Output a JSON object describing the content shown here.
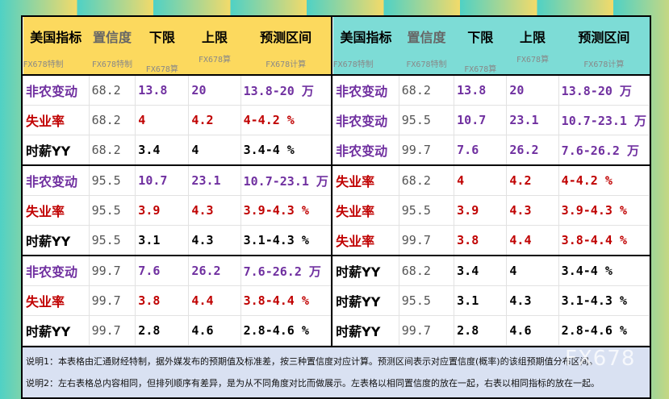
{
  "colors": {
    "nfp": "#7030a0",
    "unemp": "#c00000",
    "wage": "#000000",
    "left_header": "#fcd95e",
    "right_header": "#7ddcd6"
  },
  "headers": [
    {
      "title": "美国指标",
      "sub": "FX678特制"
    },
    {
      "title": "置信度",
      "sub": "FX678特制"
    },
    {
      "title": "下限",
      "sub": "FX678算"
    },
    {
      "title": "上限",
      "sub": "FX678算"
    },
    {
      "title": "预测区间",
      "sub": "FX678计算"
    }
  ],
  "left_rows": [
    {
      "indicator": "非农变动",
      "confidence": "68.2",
      "lower": "13.8",
      "upper": "20",
      "range": "13.8-20 万",
      "type": "nfp"
    },
    {
      "indicator": "失业率",
      "confidence": "68.2",
      "lower": "4",
      "upper": "4.2",
      "range": "4-4.2 %",
      "type": "unemp"
    },
    {
      "indicator": "时薪YY",
      "confidence": "68.2",
      "lower": "3.4",
      "upper": "4",
      "range": "3.4-4 %",
      "type": "wage"
    },
    {
      "indicator": "非农变动",
      "confidence": "95.5",
      "lower": "10.7",
      "upper": "23.1",
      "range": "10.7-23.1 万",
      "type": "nfp"
    },
    {
      "indicator": "失业率",
      "confidence": "95.5",
      "lower": "3.9",
      "upper": "4.3",
      "range": "3.9-4.3 %",
      "type": "unemp"
    },
    {
      "indicator": "时薪YY",
      "confidence": "95.5",
      "lower": "3.1",
      "upper": "4.3",
      "range": "3.1-4.3 %",
      "type": "wage"
    },
    {
      "indicator": "非农变动",
      "confidence": "99.7",
      "lower": "7.6",
      "upper": "26.2",
      "range": "7.6-26.2 万",
      "type": "nfp"
    },
    {
      "indicator": "失业率",
      "confidence": "99.7",
      "lower": "3.8",
      "upper": "4.4",
      "range": "3.8-4.4 %",
      "type": "unemp"
    },
    {
      "indicator": "时薪YY",
      "confidence": "99.7",
      "lower": "2.8",
      "upper": "4.6",
      "range": "2.8-4.6 %",
      "type": "wage"
    }
  ],
  "right_rows": [
    {
      "indicator": "非农变动",
      "confidence": "68.2",
      "lower": "13.8",
      "upper": "20",
      "range": "13.8-20 万",
      "type": "nfp"
    },
    {
      "indicator": "非农变动",
      "confidence": "95.5",
      "lower": "10.7",
      "upper": "23.1",
      "range": "10.7-23.1 万",
      "type": "nfp"
    },
    {
      "indicator": "非农变动",
      "confidence": "99.7",
      "lower": "7.6",
      "upper": "26.2",
      "range": "7.6-26.2 万",
      "type": "nfp"
    },
    {
      "indicator": "失业率",
      "confidence": "68.2",
      "lower": "4",
      "upper": "4.2",
      "range": "4-4.2 %",
      "type": "unemp"
    },
    {
      "indicator": "失业率",
      "confidence": "95.5",
      "lower": "3.9",
      "upper": "4.3",
      "range": "3.9-4.3 %",
      "type": "unemp"
    },
    {
      "indicator": "失业率",
      "confidence": "99.7",
      "lower": "3.8",
      "upper": "4.4",
      "range": "3.8-4.4 %",
      "type": "unemp"
    },
    {
      "indicator": "时薪YY",
      "confidence": "68.2",
      "lower": "3.4",
      "upper": "4",
      "range": "3.4-4 %",
      "type": "wage"
    },
    {
      "indicator": "时薪YY",
      "confidence": "95.5",
      "lower": "3.1",
      "upper": "4.3",
      "range": "3.1-4.3 %",
      "type": "wage"
    },
    {
      "indicator": "时薪YY",
      "confidence": "99.7",
      "lower": "2.8",
      "upper": "4.6",
      "range": "2.8-4.6 %",
      "type": "wage"
    }
  ],
  "notes": {
    "note1": "说明1：本表格由汇通财经特制，据外媒发布的预期值及标准差，按三种置信度对应计算。预测区间表示对应置信度(概率)的该组预期值分布区间。",
    "note2": "说明2：左右表格总内容相同，但排列顺序有差异，是为从不同角度对比而做展示。左表格以相同置信度的放在一起，右表以相同指标的放在一起。"
  },
  "watermark": "FX678"
}
